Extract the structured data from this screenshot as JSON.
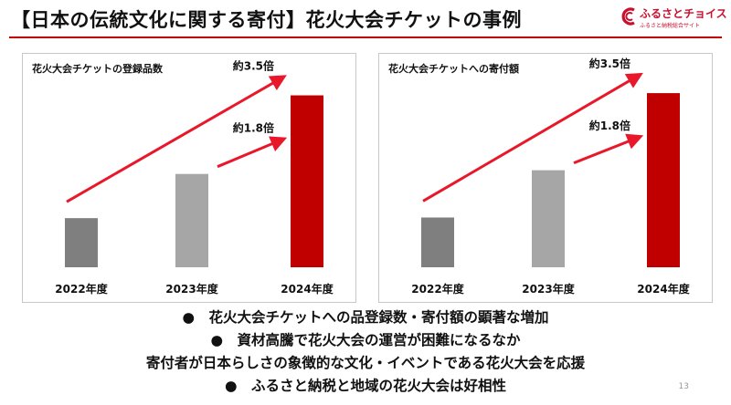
{
  "slide": {
    "title": "【日本の伝統文化に関する寄付】花火大会チケットの事例",
    "page_number": "13"
  },
  "logo": {
    "name": "ふるさとチョイス",
    "tagline": "ふるさと納税総合サイト",
    "color": "#c8102e"
  },
  "colors": {
    "accent": "#c00000",
    "arrow": "#e8182a",
    "bar_2022": "#7f7f7f",
    "bar_2023": "#a6a6a6",
    "bar_2024": "#c00000"
  },
  "bullets": [
    "●　花火大会チケットへの品登録数・寄付額の顕著な増加",
    "●　資材高騰で花火大会の運営が困難になるなか",
    "寄付者が日本らしさの象徴的な文化・イベントである花火大会を応援",
    "●　ふるさと納税と地域の花火大会は好相性"
  ],
  "chart_data": [
    {
      "type": "bar",
      "title": "花火大会チケットの登録品数",
      "categories": [
        "2022年度",
        "2023年度",
        "2024年度"
      ],
      "values": [
        1,
        1.9,
        3.5
      ],
      "ylim": [
        0,
        3.9
      ],
      "grid": false,
      "legend": "none",
      "annotations": [
        {
          "text": "約3.5倍",
          "from": "2022年度",
          "to": "2024年度"
        },
        {
          "text": "約1.8倍",
          "from": "2023年度",
          "to": "2024年度"
        }
      ]
    },
    {
      "type": "bar",
      "title": "花火大会チケットへの寄付額",
      "categories": [
        "2022年度",
        "2023年度",
        "2024年度"
      ],
      "values": [
        1,
        1.95,
        3.5
      ],
      "ylim": [
        0,
        3.85
      ],
      "grid": false,
      "legend": "none",
      "annotations": [
        {
          "text": "約3.5倍",
          "from": "2022年度",
          "to": "2024年度"
        },
        {
          "text": "約1.8倍",
          "from": "2023年度",
          "to": "2024年度"
        }
      ]
    }
  ]
}
